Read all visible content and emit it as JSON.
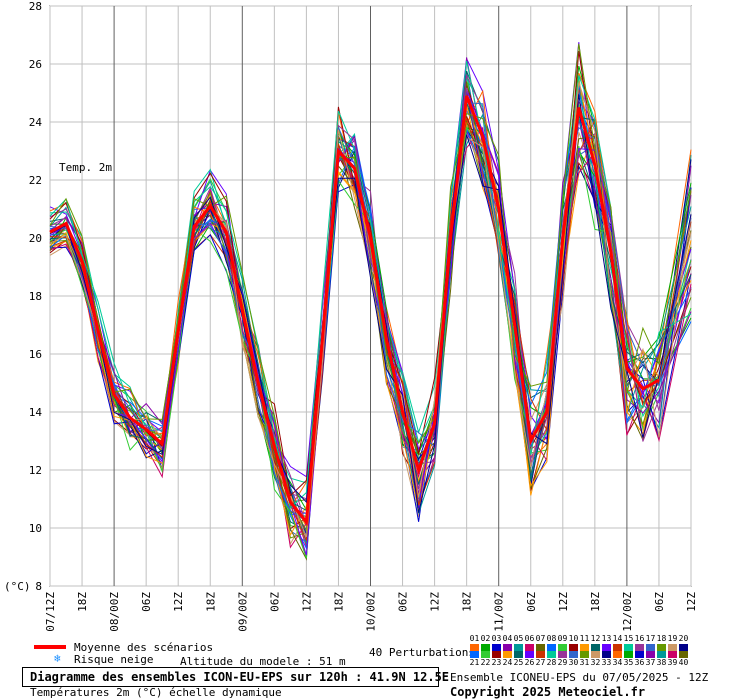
{
  "chart_data": {
    "type": "line",
    "ylabel": "(°C)",
    "ylim": [
      8,
      28
    ],
    "yticks": [
      8,
      10,
      12,
      14,
      16,
      18,
      20,
      22,
      24,
      26,
      28
    ],
    "annotation": "Temp. 2m",
    "xticks": [
      "07/12Z",
      "18Z",
      "08/00Z",
      "06Z",
      "12Z",
      "18Z",
      "09/00Z",
      "06Z",
      "12Z",
      "18Z",
      "10/00Z",
      "06Z",
      "12Z",
      "18Z",
      "11/00Z",
      "06Z",
      "12Z",
      "18Z",
      "12/00Z",
      "06Z",
      "12Z"
    ],
    "x_hours": [
      0,
      6,
      12,
      18,
      24,
      30,
      36,
      42,
      48,
      54,
      60,
      66,
      72,
      78,
      84,
      90,
      96,
      102,
      108,
      114,
      120
    ],
    "mean_series": {
      "name": "Moyenne des scénarios",
      "color": "#ff0000",
      "x": [
        0,
        3,
        6,
        9,
        12,
        15,
        18,
        21,
        24,
        27,
        30,
        33,
        36,
        39,
        42,
        45,
        48,
        51,
        54,
        57,
        60,
        63,
        66,
        69,
        72,
        75,
        78,
        81,
        84,
        87,
        90,
        93,
        96,
        99,
        102,
        105,
        108,
        111,
        114
      ],
      "values": [
        20.2,
        20.5,
        19.2,
        16.8,
        14.6,
        13.8,
        13.4,
        12.9,
        16.8,
        20.4,
        21.1,
        20.2,
        17.5,
        15.0,
        12.8,
        10.9,
        10.2,
        16.5,
        23.0,
        22.4,
        20.0,
        16.5,
        14.0,
        12.0,
        13.6,
        20.0,
        24.9,
        23.5,
        21.0,
        17.0,
        13.0,
        14.0,
        20.0,
        24.5,
        22.5,
        19.5,
        15.5,
        14.8,
        15.1
      ]
    },
    "member_colors": [
      "#ff6600",
      "#00aa00",
      "#0000cc",
      "#8800aa",
      "#009999",
      "#cc0066",
      "#666600",
      "#0066ff",
      "#33cc33",
      "#990000",
      "#ff9900",
      "#006666",
      "#6600ff",
      "#cc3300",
      "#00cc99",
      "#993399",
      "#3366cc",
      "#669900",
      "#cc9966",
      "#000088"
    ]
  },
  "legend": {
    "mean_label": "Moyenne des scénarios",
    "snow_label": "Risque neige",
    "altitude_label": "Altitude du modele : 51 m",
    "perturbations_label": "40 Perturbations"
  },
  "perturbations": {
    "row1": [
      "01",
      "02",
      "03",
      "04",
      "05",
      "06",
      "07",
      "08",
      "09",
      "10",
      "11",
      "12",
      "13",
      "14",
      "15",
      "16",
      "17",
      "18",
      "19",
      "20"
    ],
    "row2": [
      "21",
      "22",
      "23",
      "24",
      "25",
      "26",
      "27",
      "28",
      "29",
      "30",
      "31",
      "32",
      "33",
      "34",
      "35",
      "36",
      "37",
      "38",
      "39",
      "40"
    ]
  },
  "footer": {
    "title": "Diagramme des ensembles ICON-EU-EPS sur 120h : 41.9N 12.5E",
    "subtitle": "Températures 2m (°C) échelle dynamique",
    "run": "Ensemble ICONEU-EPS du 07/05/2025 - 12Z",
    "copyright": "Copyright 2025 Meteociel.fr"
  }
}
